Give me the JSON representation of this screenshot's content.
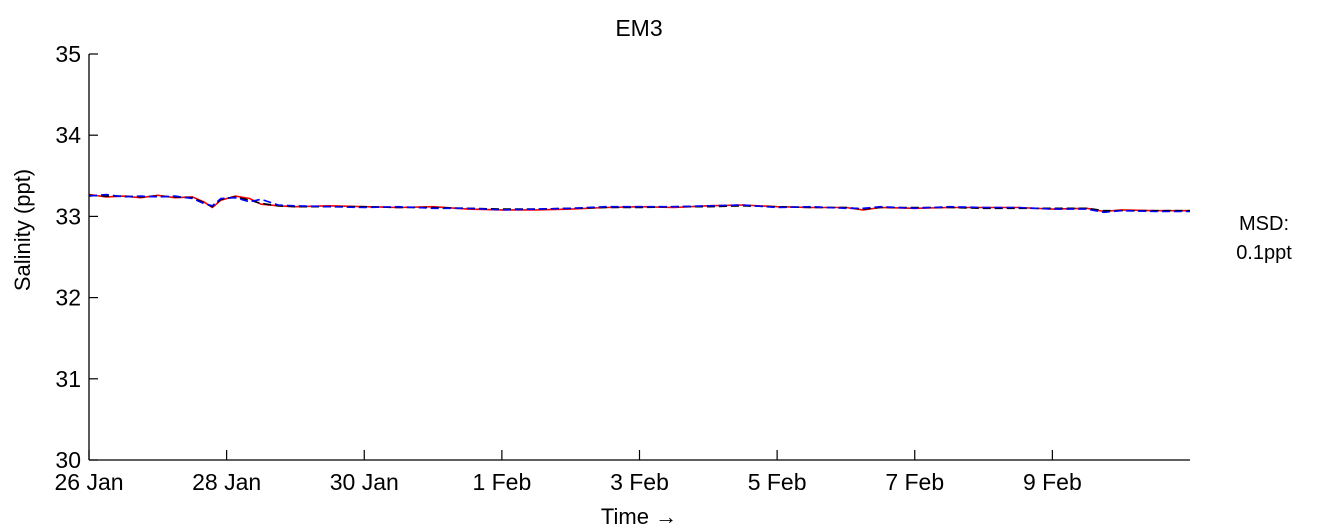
{
  "chart_data": {
    "type": "line",
    "title": "EM3",
    "xlabel": "Time →",
    "ylabel": "Salinity (ppt)",
    "ylim": [
      30,
      35
    ],
    "yticks": [
      "30",
      "31",
      "32",
      "33",
      "34",
      "35"
    ],
    "xlim": [
      "2011-01-26",
      "2011-02-11"
    ],
    "xticks": [
      {
        "date": "2011-01-26",
        "label": "26 Jan"
      },
      {
        "date": "2011-01-28",
        "label": "28 Jan"
      },
      {
        "date": "2011-01-30",
        "label": "30 Jan"
      },
      {
        "date": "2011-02-01",
        "label": "1 Feb"
      },
      {
        "date": "2011-02-03",
        "label": "3 Feb"
      },
      {
        "date": "2011-02-05",
        "label": "5 Feb"
      },
      {
        "date": "2011-02-07",
        "label": "7 Feb"
      },
      {
        "date": "2011-02-09",
        "label": "9 Feb"
      }
    ],
    "grid": false,
    "annotation": {
      "line1": "MSD:",
      "line2": "0.1ppt"
    },
    "series": [
      {
        "color": "#ff0000",
        "style": "solid",
        "points": [
          [
            "2011-01-26 00:00",
            33.27
          ],
          [
            "2011-01-26 06:00",
            33.24
          ],
          [
            "2011-01-26 12:00",
            33.25
          ],
          [
            "2011-01-26 18:00",
            33.23
          ],
          [
            "2011-01-27 00:00",
            33.26
          ],
          [
            "2011-01-27 06:00",
            33.23
          ],
          [
            "2011-01-27 12:00",
            33.24
          ],
          [
            "2011-01-27 16:00",
            33.18
          ],
          [
            "2011-01-27 19:00",
            33.11
          ],
          [
            "2011-01-27 22:00",
            33.2
          ],
          [
            "2011-01-28 03:00",
            33.25
          ],
          [
            "2011-01-28 08:00",
            33.22
          ],
          [
            "2011-01-28 12:00",
            33.15
          ],
          [
            "2011-01-28 18:00",
            33.13
          ],
          [
            "2011-01-29 00:00",
            33.12
          ],
          [
            "2011-01-29 12:00",
            33.13
          ],
          [
            "2011-01-30 00:00",
            33.12
          ],
          [
            "2011-01-30 12:00",
            33.11
          ],
          [
            "2011-01-31 00:00",
            33.12
          ],
          [
            "2011-01-31 12:00",
            33.09
          ],
          [
            "2011-02-01 00:00",
            33.08
          ],
          [
            "2011-02-01 12:00",
            33.08
          ],
          [
            "2011-02-02 00:00",
            33.09
          ],
          [
            "2011-02-02 12:00",
            33.11
          ],
          [
            "2011-02-03 00:00",
            33.12
          ],
          [
            "2011-02-03 12:00",
            33.11
          ],
          [
            "2011-02-04 00:00",
            33.13
          ],
          [
            "2011-02-04 12:00",
            33.14
          ],
          [
            "2011-02-05 00:00",
            33.12
          ],
          [
            "2011-02-05 12:00",
            33.11
          ],
          [
            "2011-02-06 00:00",
            33.11
          ],
          [
            "2011-02-06 06:00",
            33.08
          ],
          [
            "2011-02-06 12:00",
            33.11
          ],
          [
            "2011-02-07 00:00",
            33.1
          ],
          [
            "2011-02-07 12:00",
            33.11
          ],
          [
            "2011-02-08 00:00",
            33.11
          ],
          [
            "2011-02-08 12:00",
            33.11
          ],
          [
            "2011-02-09 00:00",
            33.09
          ],
          [
            "2011-02-09 12:00",
            33.1
          ],
          [
            "2011-02-09 18:00",
            33.06
          ],
          [
            "2011-02-10 00:00",
            33.08
          ],
          [
            "2011-02-10 12:00",
            33.07
          ],
          [
            "2011-02-11 00:00",
            33.07
          ]
        ]
      },
      {
        "color": "#000000",
        "style": "dashed",
        "points": [
          [
            "2011-01-26 00:00",
            33.26
          ],
          [
            "2011-01-26 06:00",
            33.25
          ],
          [
            "2011-01-26 12:00",
            33.25
          ],
          [
            "2011-01-26 18:00",
            33.24
          ],
          [
            "2011-01-27 00:00",
            33.25
          ],
          [
            "2011-01-27 06:00",
            33.24
          ],
          [
            "2011-01-27 12:00",
            33.23
          ],
          [
            "2011-01-27 16:00",
            33.17
          ],
          [
            "2011-01-27 19:00",
            33.12
          ],
          [
            "2011-01-27 22:00",
            33.21
          ],
          [
            "2011-01-28 03:00",
            33.24
          ],
          [
            "2011-01-28 08:00",
            33.2
          ],
          [
            "2011-01-28 12:00",
            33.16
          ],
          [
            "2011-01-28 18:00",
            33.13
          ],
          [
            "2011-01-29 00:00",
            33.12
          ],
          [
            "2011-01-29 12:00",
            33.12
          ],
          [
            "2011-01-30 00:00",
            33.12
          ],
          [
            "2011-01-30 12:00",
            33.11
          ],
          [
            "2011-01-31 00:00",
            33.11
          ],
          [
            "2011-01-31 12:00",
            33.1
          ],
          [
            "2011-02-01 00:00",
            33.09
          ],
          [
            "2011-02-01 12:00",
            33.09
          ],
          [
            "2011-02-02 00:00",
            33.1
          ],
          [
            "2011-02-02 12:00",
            33.11
          ],
          [
            "2011-02-03 00:00",
            33.11
          ],
          [
            "2011-02-03 12:00",
            33.12
          ],
          [
            "2011-02-04 00:00",
            33.12
          ],
          [
            "2011-02-04 12:00",
            33.13
          ],
          [
            "2011-02-05 00:00",
            33.12
          ],
          [
            "2011-02-05 12:00",
            33.11
          ],
          [
            "2011-02-06 00:00",
            33.11
          ],
          [
            "2011-02-06 06:00",
            33.09
          ],
          [
            "2011-02-06 12:00",
            33.11
          ],
          [
            "2011-02-07 00:00",
            33.11
          ],
          [
            "2011-02-07 12:00",
            33.11
          ],
          [
            "2011-02-08 00:00",
            33.1
          ],
          [
            "2011-02-08 12:00",
            33.1
          ],
          [
            "2011-02-09 00:00",
            33.1
          ],
          [
            "2011-02-09 12:00",
            33.1
          ],
          [
            "2011-02-09 18:00",
            33.07
          ],
          [
            "2011-02-10 00:00",
            33.07
          ],
          [
            "2011-02-10 12:00",
            33.07
          ],
          [
            "2011-02-11 00:00",
            33.07
          ]
        ]
      },
      {
        "color": "#0000ff",
        "style": "dashed",
        "points": [
          [
            "2011-01-26 00:00",
            33.25
          ],
          [
            "2011-01-26 06:00",
            33.27
          ],
          [
            "2011-01-26 12:00",
            33.24
          ],
          [
            "2011-01-26 18:00",
            33.25
          ],
          [
            "2011-01-27 00:00",
            33.24
          ],
          [
            "2011-01-27 06:00",
            33.25
          ],
          [
            "2011-01-27 12:00",
            33.22
          ],
          [
            "2011-01-27 16:00",
            33.16
          ],
          [
            "2011-01-27 19:00",
            33.13
          ],
          [
            "2011-01-27 22:00",
            33.22
          ],
          [
            "2011-01-28 03:00",
            33.23
          ],
          [
            "2011-01-28 08:00",
            33.18
          ],
          [
            "2011-01-28 12:00",
            33.21
          ],
          [
            "2011-01-28 18:00",
            33.14
          ],
          [
            "2011-01-29 00:00",
            33.13
          ],
          [
            "2011-01-29 12:00",
            33.12
          ],
          [
            "2011-01-30 00:00",
            33.11
          ],
          [
            "2011-01-30 12:00",
            33.12
          ],
          [
            "2011-01-31 00:00",
            33.1
          ],
          [
            "2011-01-31 12:00",
            33.1
          ],
          [
            "2011-02-01 00:00",
            33.08
          ],
          [
            "2011-02-01 12:00",
            33.09
          ],
          [
            "2011-02-02 00:00",
            33.1
          ],
          [
            "2011-02-02 12:00",
            33.12
          ],
          [
            "2011-02-03 00:00",
            33.12
          ],
          [
            "2011-02-03 12:00",
            33.12
          ],
          [
            "2011-02-04 00:00",
            33.13
          ],
          [
            "2011-02-04 12:00",
            33.14
          ],
          [
            "2011-02-05 00:00",
            33.11
          ],
          [
            "2011-02-05 12:00",
            33.12
          ],
          [
            "2011-02-06 00:00",
            33.1
          ],
          [
            "2011-02-06 06:00",
            33.1
          ],
          [
            "2011-02-06 12:00",
            33.12
          ],
          [
            "2011-02-07 00:00",
            33.1
          ],
          [
            "2011-02-07 12:00",
            33.12
          ],
          [
            "2011-02-08 00:00",
            33.11
          ],
          [
            "2011-02-08 12:00",
            33.11
          ],
          [
            "2011-02-09 00:00",
            33.09
          ],
          [
            "2011-02-09 12:00",
            33.09
          ],
          [
            "2011-02-09 18:00",
            33.05
          ],
          [
            "2011-02-10 00:00",
            33.07
          ],
          [
            "2011-02-10 12:00",
            33.06
          ],
          [
            "2011-02-11 00:00",
            33.06
          ]
        ]
      }
    ]
  }
}
